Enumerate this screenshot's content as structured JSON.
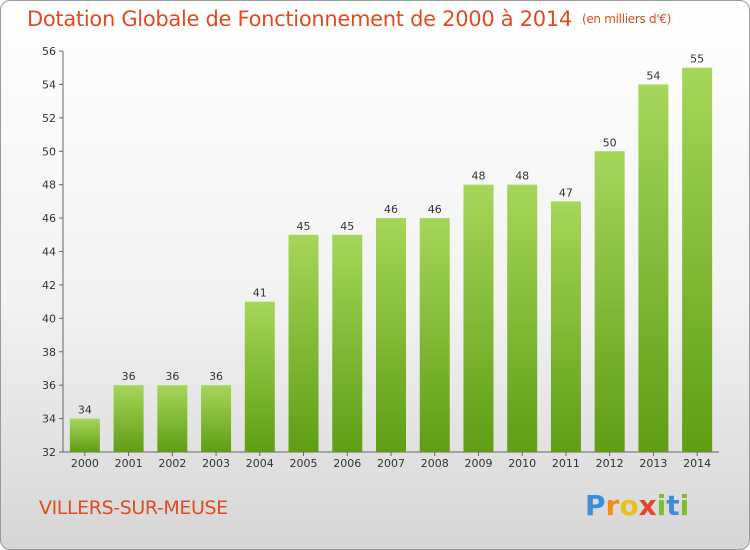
{
  "chart_data": {
    "type": "bar",
    "title": "Dotation Globale de Fonctionnement de 2000 à 2014",
    "subtitle": "(en milliers d'€)",
    "categories": [
      "2000",
      "2001",
      "2002",
      "2003",
      "2004",
      "2005",
      "2006",
      "2007",
      "2008",
      "2009",
      "2010",
      "2011",
      "2012",
      "2013",
      "2014"
    ],
    "values": [
      34,
      36,
      36,
      36,
      41,
      45,
      45,
      46,
      46,
      48,
      48,
      47,
      50,
      54,
      55
    ],
    "ylim": [
      32,
      56
    ],
    "yticks": [
      32,
      34,
      36,
      38,
      40,
      42,
      44,
      46,
      48,
      50,
      52,
      54,
      56
    ],
    "grid": false,
    "bar_color": "#7cbb2a"
  },
  "footer": {
    "commune": "VILLERS-SUR-MEUSE",
    "logo_letters": [
      "P",
      "r",
      "o",
      "x",
      "i",
      "t",
      "i"
    ]
  },
  "colors": {
    "title": "#e04b20",
    "bar_top": "#a6d65a",
    "bar_bottom": "#5f9e14"
  }
}
